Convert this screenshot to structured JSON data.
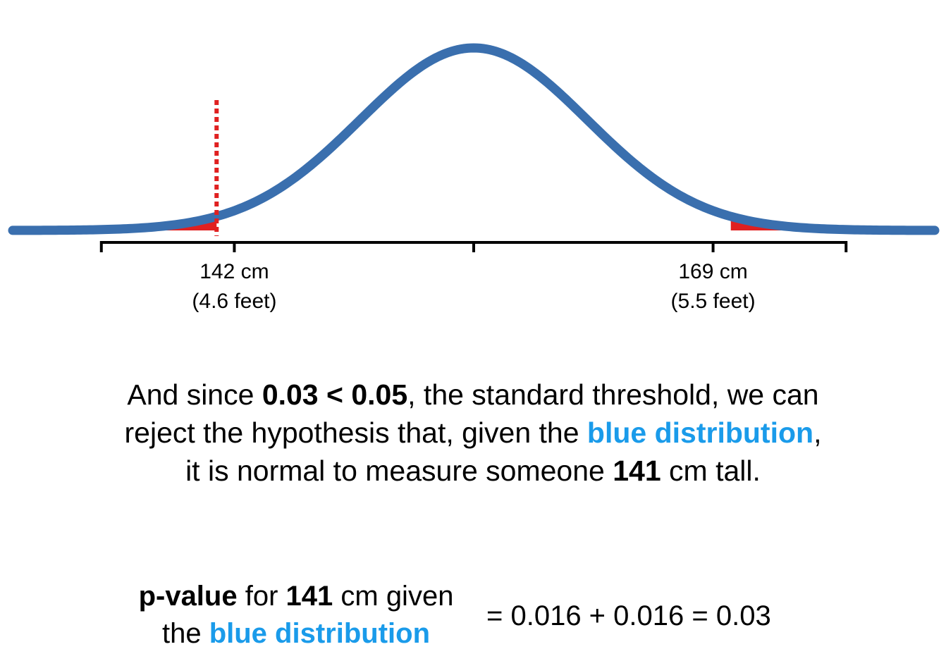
{
  "chart_data": {
    "type": "area",
    "title": "",
    "xlabel": "",
    "ylabel": "",
    "distribution": {
      "name": "blue distribution",
      "mean": 155.5,
      "sd": 6.4
    },
    "xlim": [
      129.5,
      181.5
    ],
    "axis_ticks": [
      134.5,
      142,
      155.5,
      169,
      176.5
    ],
    "tick_labels": [
      {
        "x": 142,
        "line1": "142 cm",
        "line2": "(4.6 feet)"
      },
      {
        "x": 169,
        "line1": "169 cm",
        "line2": "(5.5 feet)"
      }
    ],
    "threshold_line": {
      "x": 141,
      "style": "dotted"
    },
    "shaded_tails": [
      {
        "from": 136.5,
        "to": 141
      },
      {
        "from": 170,
        "to": 173.5
      }
    ],
    "colors": {
      "curve": "#3a6fae",
      "tail": "#e02020",
      "threshold": "#e02020",
      "axis": "#000000"
    }
  },
  "text": {
    "para": {
      "p1": "And since ",
      "b1": "0.03 < 0.05",
      "p2": ", the standard threshold, we can reject the hypothesis that, given the ",
      "blue": "blue distribution",
      "p3": ", it is normal to measure someone ",
      "b2": "141",
      "p4": " cm tall."
    },
    "formula": {
      "b1": "p-value",
      "t1": " for ",
      "b2": "141",
      "t2": " cm given",
      "t3": "the ",
      "blue": "blue distribution",
      "rhs": "= 0.016 + 0.016 = 0.03"
    }
  }
}
